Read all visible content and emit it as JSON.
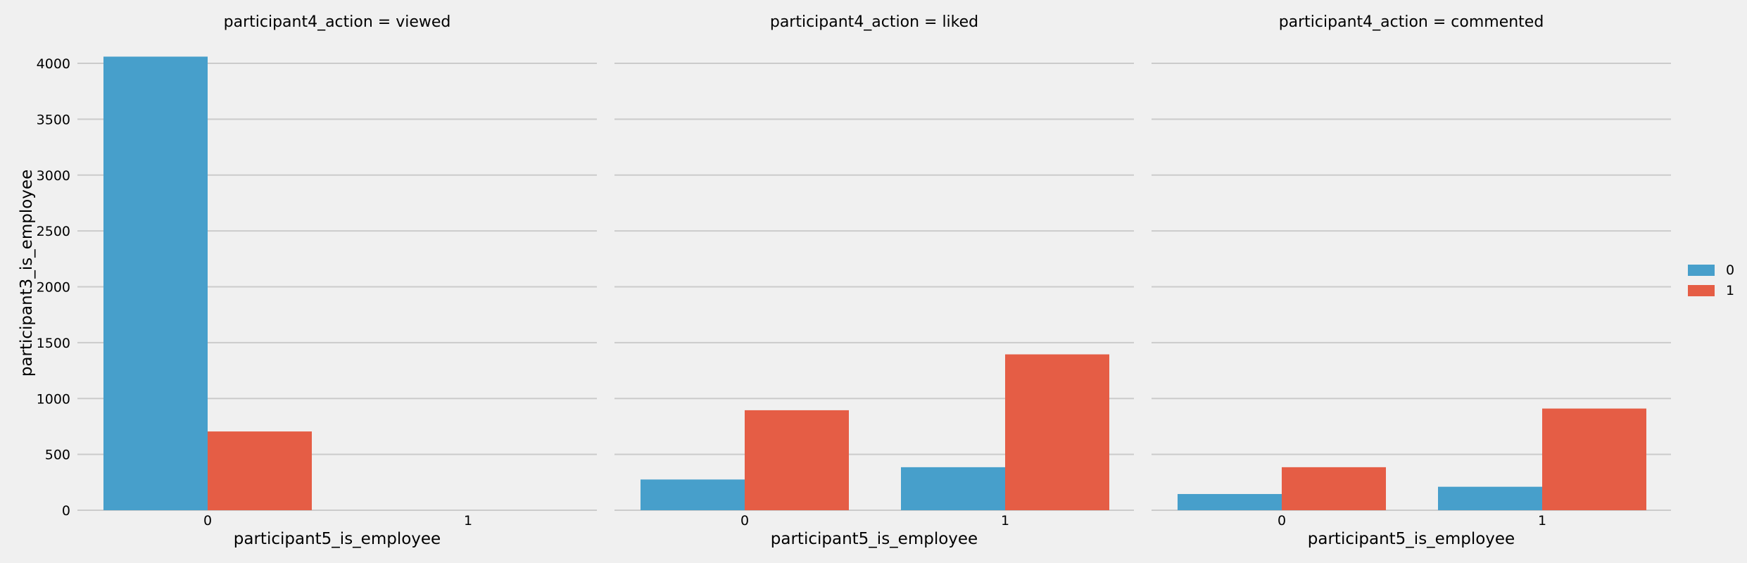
{
  "chart_data": {
    "type": "bar",
    "ylabel": "participant3_is_employee",
    "ylim": [
      0,
      4100
    ],
    "yticks": [
      0,
      500,
      1000,
      1500,
      2000,
      2500,
      3000,
      3500,
      4000
    ],
    "grid": true,
    "legend": {
      "placement": "right",
      "entries": [
        "0",
        "1"
      ]
    },
    "colors": {
      "0": "#479fcb",
      "1": "#e55d45"
    },
    "panels": [
      {
        "title": "participant4_action = viewed",
        "xlabel": "participant5_is_employee",
        "categories": [
          "0",
          "1"
        ],
        "series": [
          {
            "name": "0",
            "values": [
              4060,
              0
            ]
          },
          {
            "name": "1",
            "values": [
              705,
              0
            ]
          }
        ]
      },
      {
        "title": "participant4_action = liked",
        "xlabel": "participant5_is_employee",
        "categories": [
          "0",
          "1"
        ],
        "series": [
          {
            "name": "0",
            "values": [
              275,
              385
            ]
          },
          {
            "name": "1",
            "values": [
              895,
              1395
            ]
          }
        ]
      },
      {
        "title": "participant4_action = commented",
        "xlabel": "participant5_is_employee",
        "categories": [
          "0",
          "1"
        ],
        "series": [
          {
            "name": "0",
            "values": [
              145,
              210
            ]
          },
          {
            "name": "1",
            "values": [
              385,
              910
            ]
          }
        ]
      }
    ]
  }
}
